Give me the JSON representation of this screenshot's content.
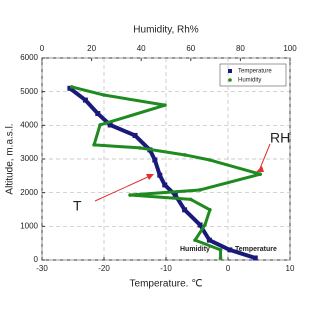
{
  "chart_data": {
    "type": "profile",
    "title": "Humidity, Rh%",
    "x_label": "Temperature. ℃",
    "y_label": "Altitude, m.a.s.l.",
    "xlim": [
      -30,
      10
    ],
    "xticks": [
      -30,
      -20,
      -10,
      0,
      10
    ],
    "x2lim": [
      0,
      100
    ],
    "x2ticks": [
      0,
      20,
      40,
      60,
      80,
      100
    ],
    "ylim": [
      0,
      6000
    ],
    "yticks": [
      0,
      1000,
      2000,
      3000,
      4000,
      5000,
      6000
    ],
    "grid": true,
    "legend": "upper right",
    "series": [
      {
        "name": "Temperature",
        "color": "#1a1a7a",
        "axis": "x",
        "x": [
          -25.5,
          -23,
          -21,
          -19,
          -15,
          -12.6,
          -11.8,
          -11,
          -10.2,
          -8.5,
          -7,
          -4.5,
          -3,
          0.3,
          4.4
        ],
        "y": [
          5100,
          4750,
          4350,
          4010,
          3700,
          3270,
          2970,
          2520,
          2230,
          1930,
          1490,
          1040,
          590,
          300,
          60
        ]
      },
      {
        "name": "Humidity",
        "color": "#1f8a1f",
        "axis": "x2",
        "x": [
          12,
          25,
          49.6,
          23.4,
          21,
          39.5,
          57.7,
          67.7,
          88,
          63.7,
          35.5,
          60,
          67.7,
          65.7,
          61.7,
          72,
          72
        ],
        "y": [
          5140,
          4900,
          4600,
          4010,
          3420,
          3330,
          3120,
          2970,
          2550,
          2080,
          1930,
          1800,
          1490,
          1040,
          590,
          300,
          60
        ]
      }
    ],
    "annotations": [
      "RH",
      "T",
      "Humidity",
      "Temperature"
    ]
  }
}
